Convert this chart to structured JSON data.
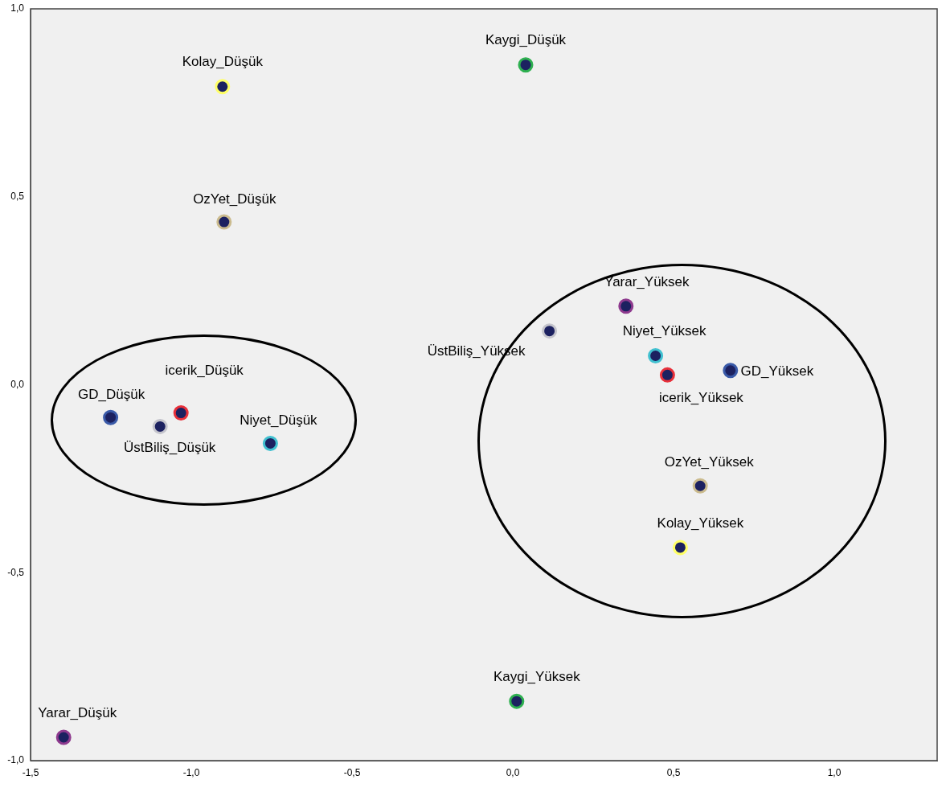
{
  "chart_data": {
    "type": "scatter",
    "x": [
      -0.903,
      0.04,
      -0.898,
      0.352,
      0.114,
      0.444,
      0.481,
      0.677,
      0.583,
      0.521,
      0.012,
      -1.397,
      -1.251,
      -1.097,
      -1.032,
      -0.754
    ],
    "series": [
      {
        "color": "#1c2160",
        "values": [
          0.793,
          0.851,
          0.433,
          0.209,
          0.143,
          0.077,
          0.026,
          0.038,
          -0.269,
          -0.433,
          -0.842,
          -0.938,
          -0.087,
          -0.111,
          -0.075,
          -0.156
        ],
        "colors": [
          "#ffff66",
          "#2eb050",
          "#cbbb8e",
          "#8e3a8e",
          "#c4c4cc",
          "#40c0d0",
          "#e8303a",
          "#3a5aa8",
          "#cbbb8e",
          "#ffff66",
          "#2eb050",
          "#8e3a8e",
          "#3a5aa8",
          "#c4c4cc",
          "#e8303a",
          "#40c0d0"
        ]
      }
    ],
    "marker": "circle",
    "annotations": [
      {
        "text": "Kolay_Düşük",
        "x": -0.903,
        "y": 0.793
      },
      {
        "text": "Kaygi_Düşük",
        "x": 0.04,
        "y": 0.851
      },
      {
        "text": "OzYet_Düşük",
        "x": -0.898,
        "y": 0.433
      },
      {
        "text": "Yarar_Yüksek",
        "x": 0.352,
        "y": 0.209
      },
      {
        "text": "ÜstBiliş_Yüksek",
        "x": 0.114,
        "y": 0.143
      },
      {
        "text": "Niyet_Yüksek",
        "x": 0.444,
        "y": 0.077
      },
      {
        "text": "icerik_Yüksek",
        "x": 0.481,
        "y": 0.026
      },
      {
        "text": "GD_Yüksek",
        "x": 0.677,
        "y": 0.038
      },
      {
        "text": "OzYet_Yüksek",
        "x": 0.583,
        "y": -0.269
      },
      {
        "text": "Kolay_Yüksek",
        "x": 0.521,
        "y": -0.433
      },
      {
        "text": "Kaygi_Yüksek",
        "x": 0.012,
        "y": -0.842
      },
      {
        "text": "Yarar_Düşük",
        "x": -1.397,
        "y": -0.938
      },
      {
        "text": "GD_Düşük",
        "x": -1.251,
        "y": -0.087
      },
      {
        "text": "ÜstBiliş_Düşük",
        "x": -1.097,
        "y": -0.111
      },
      {
        "text": "icerik_Düşük",
        "x": -1.032,
        "y": -0.075
      },
      {
        "text": "Niyet_Düşük",
        "x": -0.754,
        "y": -0.156
      }
    ],
    "xlim": [
      -1.5,
      1.32
    ],
    "xticks": [
      {
        "value": -1.5,
        "label": "-1,5"
      },
      {
        "value": -1,
        "label": "-1,0"
      },
      {
        "value": -0.5,
        "label": "-0,5"
      },
      {
        "value": 0,
        "label": "0,0"
      },
      {
        "value": 0.5,
        "label": "0,5"
      },
      {
        "value": 1,
        "label": "1,0"
      }
    ],
    "ylim": [
      -1,
      1
    ],
    "yticks": [
      {
        "value": -1,
        "label": "-1,0"
      },
      {
        "value": -0.5,
        "label": "-0,5"
      },
      {
        "value": 0,
        "label": "0,0"
      },
      {
        "value": 0.5,
        "label": "0,5"
      },
      {
        "value": 1,
        "label": "1,0"
      }
    ],
    "grid": false,
    "legend": false
  }
}
